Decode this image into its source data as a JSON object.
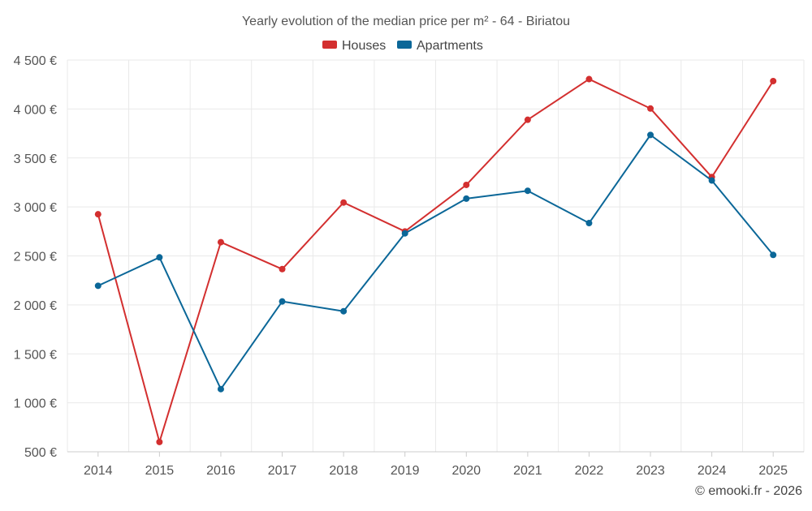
{
  "chart_data": {
    "type": "line",
    "title": "Yearly evolution of the median price per m² - 64 - Biriatou",
    "xlabel": "",
    "ylabel": "",
    "categories": [
      "2014",
      "2015",
      "2016",
      "2017",
      "2018",
      "2019",
      "2020",
      "2021",
      "2022",
      "2023",
      "2024",
      "2025"
    ],
    "ylim": [
      500,
      4500
    ],
    "yticks": [
      500,
      1000,
      1500,
      2000,
      2500,
      3000,
      3500,
      4000,
      4500
    ],
    "ytick_labels": [
      "500 €",
      "1 000 €",
      "1 500 €",
      "2 000 €",
      "2 500 €",
      "3 000 €",
      "3 500 €",
      "4 000 €",
      "4 500 €"
    ],
    "grid": true,
    "legend_position": "top-center",
    "series": [
      {
        "name": "Houses",
        "color": "#d32f2f",
        "values": [
          2925,
          600,
          2640,
          2365,
          3045,
          2750,
          3225,
          3890,
          4305,
          4005,
          3305,
          4285
        ]
      },
      {
        "name": "Apartments",
        "color": "#0b6798",
        "values": [
          2195,
          2485,
          1140,
          2035,
          1935,
          2730,
          3085,
          3165,
          2835,
          3735,
          3270,
          2510
        ]
      }
    ]
  },
  "credit": "© emooki.fr - 2026"
}
